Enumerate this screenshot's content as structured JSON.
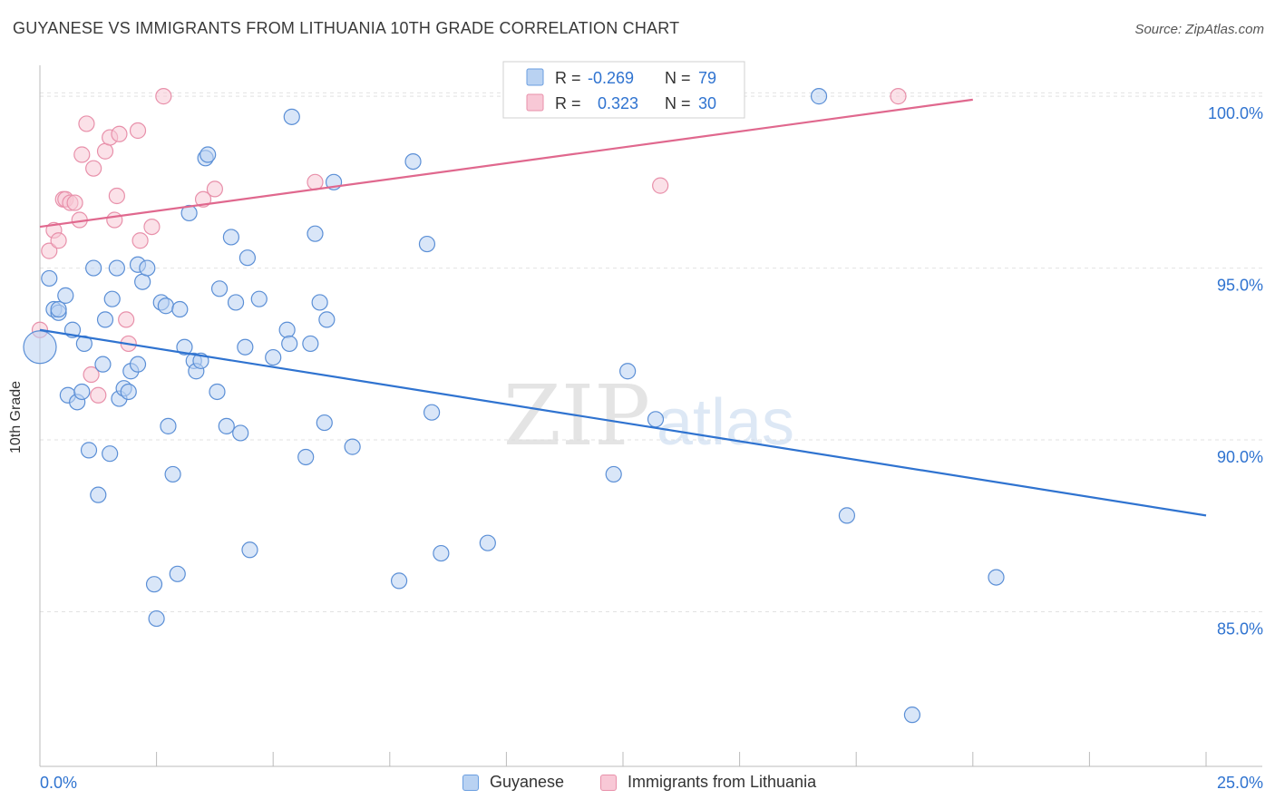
{
  "header": {
    "title": "GUYANESE VS IMMIGRANTS FROM LITHUANIA 10TH GRADE CORRELATION CHART",
    "source": "Source: ZipAtlas.com"
  },
  "watermark": {
    "zip": "ZIP",
    "atlas": "atlas"
  },
  "stats_legend": [
    {
      "r_label": "R =",
      "r_value": "-0.269",
      "n_label": "N =",
      "n_value": "79",
      "color": "#6a9ee0",
      "fill": "#b9d2f2"
    },
    {
      "r_label": "R =",
      "r_value": "0.323",
      "n_label": "N =",
      "n_value": "30",
      "color": "#e890aa",
      "fill": "#f8c8d6"
    }
  ],
  "chart_data": {
    "type": "scatter",
    "title": "GUYANESE VS IMMIGRANTS FROM LITHUANIA 10TH GRADE CORRELATION CHART",
    "xlabel": "",
    "ylabel": "10th Grade",
    "xlim": [
      0,
      25
    ],
    "ylim": [
      80.5,
      100.9
    ],
    "x_tick_labels": [
      "0.0%",
      "25.0%"
    ],
    "y_ticks": [
      85,
      90,
      95,
      100
    ],
    "y_tick_labels": [
      "85.0%",
      "90.0%",
      "95.0%",
      "100.0%"
    ],
    "grid": true,
    "legend_position": "bottom",
    "series": [
      {
        "name": "Guyanese",
        "color": "#5b8fd6",
        "fill": "#b9d2f2",
        "trend": {
          "x": [
            0,
            25
          ],
          "y": [
            93.2,
            87.8
          ],
          "color": "#2f73d0"
        },
        "points": [
          [
            0.0,
            92.7
          ],
          [
            0.2,
            94.7
          ],
          [
            0.3,
            93.8
          ],
          [
            0.4,
            93.7
          ],
          [
            0.4,
            93.8
          ],
          [
            0.55,
            94.2
          ],
          [
            0.7,
            93.2
          ],
          [
            0.6,
            91.3
          ],
          [
            0.8,
            91.1
          ],
          [
            0.9,
            91.4
          ],
          [
            0.95,
            92.8
          ],
          [
            1.05,
            89.7
          ],
          [
            1.15,
            95.0
          ],
          [
            1.25,
            88.4
          ],
          [
            1.35,
            92.2
          ],
          [
            1.4,
            93.5
          ],
          [
            1.5,
            89.6
          ],
          [
            1.55,
            94.1
          ],
          [
            1.65,
            95.0
          ],
          [
            1.7,
            91.2
          ],
          [
            1.8,
            91.5
          ],
          [
            1.9,
            91.4
          ],
          [
            1.95,
            92.0
          ],
          [
            2.1,
            92.2
          ],
          [
            2.1,
            95.1
          ],
          [
            2.2,
            94.6
          ],
          [
            2.3,
            95.0
          ],
          [
            2.45,
            85.8
          ],
          [
            2.5,
            84.8
          ],
          [
            2.6,
            94.0
          ],
          [
            2.7,
            93.9
          ],
          [
            2.75,
            90.4
          ],
          [
            2.85,
            89.0
          ],
          [
            2.95,
            86.1
          ],
          [
            3.0,
            93.8
          ],
          [
            3.1,
            92.7
          ],
          [
            3.2,
            96.6
          ],
          [
            3.3,
            92.3
          ],
          [
            3.35,
            92.0
          ],
          [
            3.45,
            92.3
          ],
          [
            3.55,
            98.2
          ],
          [
            3.6,
            98.3
          ],
          [
            3.8,
            91.4
          ],
          [
            3.85,
            94.4
          ],
          [
            4.0,
            90.4
          ],
          [
            4.1,
            95.9
          ],
          [
            4.2,
            94.0
          ],
          [
            4.3,
            90.2
          ],
          [
            4.4,
            92.7
          ],
          [
            4.45,
            95.3
          ],
          [
            4.5,
            86.8
          ],
          [
            4.7,
            94.1
          ],
          [
            5.0,
            92.4
          ],
          [
            5.3,
            93.2
          ],
          [
            5.35,
            92.8
          ],
          [
            5.4,
            99.4
          ],
          [
            5.7,
            89.5
          ],
          [
            5.8,
            92.8
          ],
          [
            5.9,
            96.0
          ],
          [
            6.0,
            94.0
          ],
          [
            6.1,
            90.5
          ],
          [
            6.15,
            93.5
          ],
          [
            6.3,
            97.5
          ],
          [
            6.7,
            89.8
          ],
          [
            7.7,
            85.9
          ],
          [
            8.0,
            98.1
          ],
          [
            8.3,
            95.7
          ],
          [
            8.4,
            90.8
          ],
          [
            8.6,
            86.7
          ],
          [
            9.6,
            87.0
          ],
          [
            9.8,
            101.5
          ],
          [
            12.3,
            89.0
          ],
          [
            12.6,
            92.0
          ],
          [
            13.2,
            90.6
          ],
          [
            14.0,
            101.5
          ],
          [
            16.7,
            100.0
          ],
          [
            17.3,
            87.8
          ],
          [
            20.5,
            86.0
          ],
          [
            18.7,
            82.0
          ]
        ]
      },
      {
        "name": "Immigrants from Lithuania",
        "color": "#e890aa",
        "fill": "#f8c8d6",
        "trend": {
          "x": [
            0,
            20
          ],
          "y": [
            96.2,
            99.9
          ],
          "color": "#e0688e"
        },
        "points": [
          [
            0.0,
            93.2
          ],
          [
            0.2,
            95.5
          ],
          [
            0.3,
            96.1
          ],
          [
            0.4,
            95.8
          ],
          [
            0.5,
            97.0
          ],
          [
            0.55,
            97.0
          ],
          [
            0.65,
            96.9
          ],
          [
            0.75,
            96.9
          ],
          [
            0.85,
            96.4
          ],
          [
            0.9,
            98.3
          ],
          [
            1.0,
            99.2
          ],
          [
            1.1,
            91.9
          ],
          [
            1.15,
            97.9
          ],
          [
            1.25,
            91.3
          ],
          [
            1.4,
            98.4
          ],
          [
            1.5,
            98.8
          ],
          [
            1.6,
            96.4
          ],
          [
            1.65,
            97.1
          ],
          [
            1.7,
            98.9
          ],
          [
            1.85,
            93.5
          ],
          [
            1.9,
            92.8
          ],
          [
            2.1,
            99.0
          ],
          [
            2.15,
            95.8
          ],
          [
            2.4,
            96.2
          ],
          [
            2.65,
            100.0
          ],
          [
            3.5,
            97.0
          ],
          [
            3.75,
            97.3
          ],
          [
            5.9,
            97.5
          ],
          [
            13.3,
            97.4
          ],
          [
            18.4,
            100.0
          ]
        ]
      }
    ]
  }
}
